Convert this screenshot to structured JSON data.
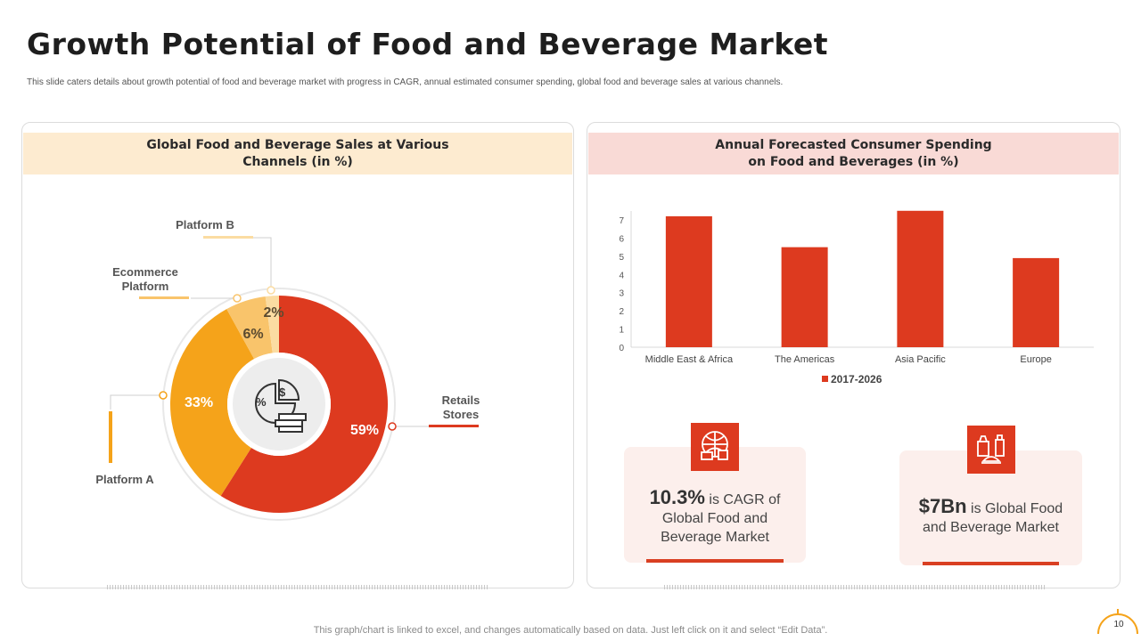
{
  "page": {
    "title": "Growth Potential of Food and Beverage Market",
    "subtitle": "This slide caters details about growth potential of food and beverage market with progress in CAGR, annual estimated consumer spending, global food and beverage sales at various channels.",
    "footer": "This graph/chart is linked to excel,  and changes automatically based on data. Just left click on it and select “Edit Data”.",
    "page_number": "10"
  },
  "left_panel": {
    "heading": "Global Food and Beverage Sales at Various Channels (in %)",
    "center_icon": "pie-chart-dollar-icon"
  },
  "right_panel": {
    "heading": "Annual Forecasted Consumer Spending on Food and Beverages (in %)"
  },
  "stats": [
    {
      "value": "10.3%",
      "text": " is CAGR of Global Food and Beverage Market",
      "icon": "food-globe-icon"
    },
    {
      "value": "$7Bn",
      "text": " is Global Food and Beverage Market",
      "icon": "fast-food-icon"
    }
  ],
  "colors": {
    "red": "#dd3a1f",
    "orange": "#f5a31a",
    "light_orange": "#f9c46b",
    "pale_orange": "#fbdca2"
  },
  "chart_data": [
    {
      "type": "pie",
      "title": "Global Food and Beverage Sales at Various Channels (in %)",
      "labels": [
        "Retails Stores",
        "Platform A",
        "Ecommerce Platform",
        "Platform B"
      ],
      "values": [
        59,
        33,
        6,
        2
      ],
      "value_labels": [
        "59%",
        "33%",
        "6%",
        "2%"
      ],
      "colors": [
        "#dd3a1f",
        "#f5a31a",
        "#f9c46b",
        "#fbdca2"
      ]
    },
    {
      "type": "bar",
      "title": "Annual Forecasted Consumer Spending on Food and Beverages (in %)",
      "categories": [
        "Middle East & Africa",
        "The Americas",
        "Asia Pacific",
        "Europe"
      ],
      "series": [
        {
          "name": "2017-2026",
          "values": [
            7.2,
            5.5,
            7.5,
            4.9
          ],
          "color": "#dd3a1f"
        }
      ],
      "yticks": [
        "0",
        "1",
        "2",
        "3",
        "4",
        "5",
        "6",
        "7"
      ],
      "ylim": [
        0,
        7.5
      ],
      "legend": "bottom"
    }
  ]
}
